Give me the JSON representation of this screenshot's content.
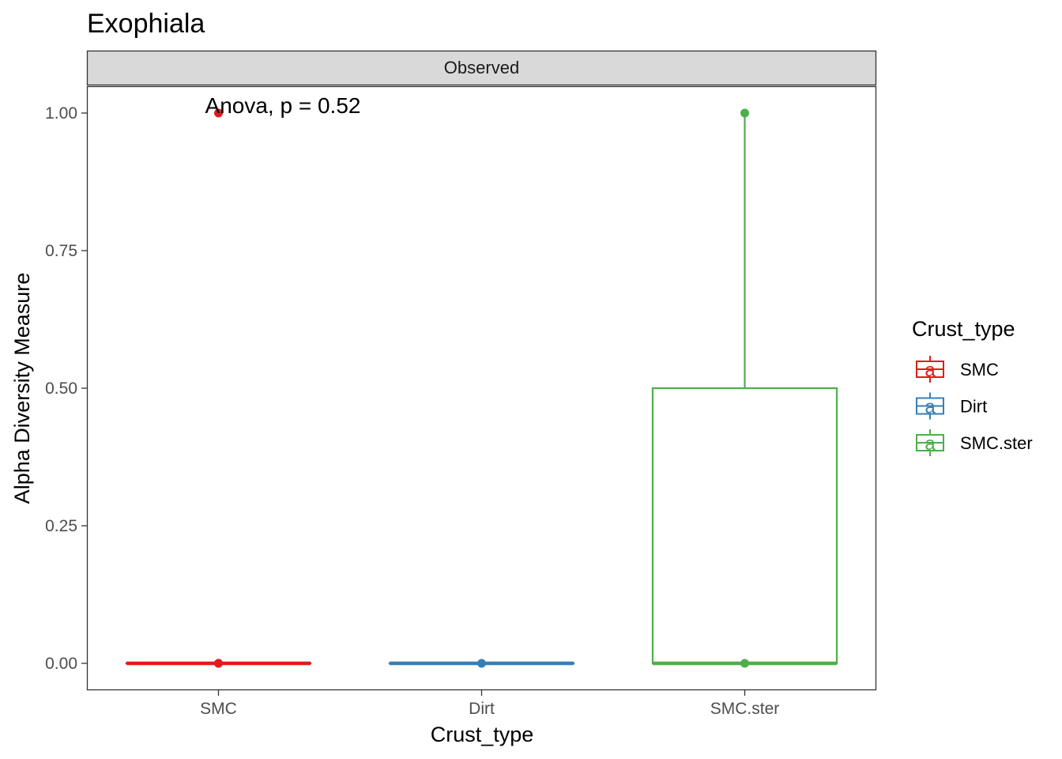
{
  "chart_data": {
    "type": "box",
    "title": "Exophiala",
    "facet": "Observed",
    "xlabel": "Crust_type",
    "ylabel": "Alpha Diversity Measure",
    "ylim": [
      -0.05,
      1.05
    ],
    "yticks": [
      0,
      0.25,
      0.5,
      0.75,
      1.0
    ],
    "ytick_labels": [
      "0.00",
      "0.25",
      "0.50",
      "0.75",
      "1.00"
    ],
    "categories": [
      "SMC",
      "Dirt",
      "SMC.ster"
    ],
    "annotation": "Anova, p = 0.52",
    "grid": false,
    "legend": {
      "title": "Crust_type",
      "position": "right",
      "key_glyph": "a"
    },
    "series": [
      {
        "name": "SMC",
        "color": "#E41A1C",
        "box": {
          "min": 0,
          "q1": 0,
          "median": 0,
          "q3": 0,
          "max": 0
        },
        "points": [
          1,
          0,
          0
        ]
      },
      {
        "name": "Dirt",
        "color": "#377EB8",
        "box": {
          "min": 0,
          "q1": 0,
          "median": 0,
          "q3": 0,
          "max": 0
        },
        "points": [
          0
        ]
      },
      {
        "name": "SMC.ster",
        "color": "#4DAF4A",
        "box": {
          "min": 0,
          "q1": 0,
          "median": 0,
          "q3": 0.5,
          "max": 1
        },
        "points": [
          1,
          0
        ]
      }
    ]
  }
}
